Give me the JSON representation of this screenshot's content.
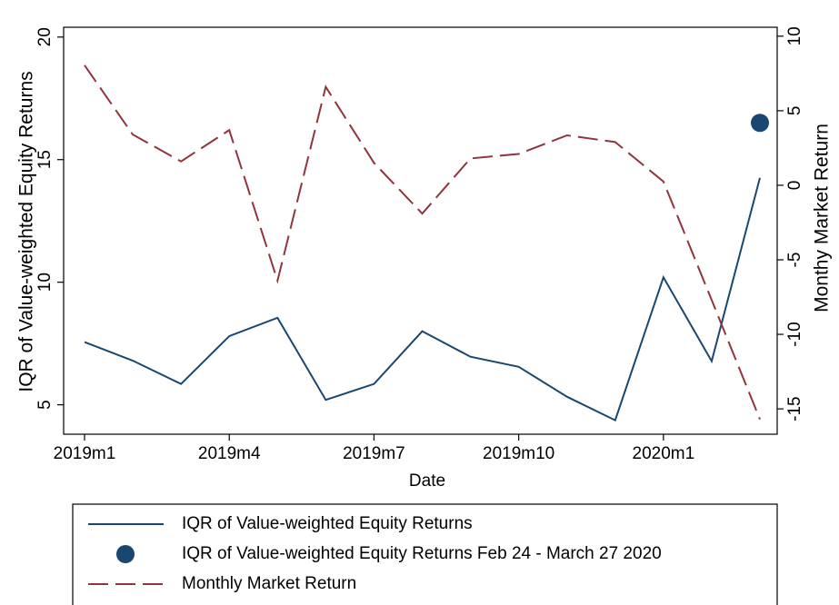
{
  "chart_data": {
    "type": "line",
    "xlabel": "Date",
    "ylabel": "IQR of Value-weighted Equity Returns",
    "y2label": "Monthy Market Return",
    "categories": [
      "2019m1",
      null,
      null,
      "2019m4",
      null,
      null,
      "2019m7",
      null,
      null,
      "2019m10",
      null,
      null,
      "2020m1",
      null,
      null
    ],
    "series": [
      {
        "name": "IQR of Value-weighted Equity Returns",
        "color": "#1a476f",
        "style": "solid",
        "values": [
          7.56,
          6.8,
          5.85,
          7.8,
          8.55,
          5.2,
          5.85,
          8.0,
          6.96,
          6.55,
          5.33,
          4.37,
          10.2,
          6.78,
          14.26
        ]
      },
      {
        "name": "IQR of Value-weighted Equity Returns Feb 24 - March 27 2020",
        "color": "#1a476f",
        "style": "marker",
        "values": [
          null,
          null,
          null,
          null,
          null,
          null,
          null,
          null,
          null,
          null,
          null,
          null,
          null,
          null,
          16.5
        ]
      },
      {
        "name": "Monthly Market Return",
        "color": "#90353b",
        "style": "dash",
        "axis": "y2",
        "values": [
          8.05,
          3.4,
          1.6,
          3.7,
          -6.4,
          6.6,
          1.5,
          -1.9,
          1.8,
          2.1,
          3.35,
          2.9,
          0.25,
          -7.7,
          -15.7
        ]
      }
    ],
    "ylim": [
      3.8,
      20.4
    ],
    "yticks": [
      5,
      10,
      15,
      20
    ],
    "y2lim": [
      -16.7,
      10.6
    ],
    "y2ticks": [
      -15,
      -10,
      -5,
      0,
      5,
      10
    ],
    "legend": "bottom"
  }
}
